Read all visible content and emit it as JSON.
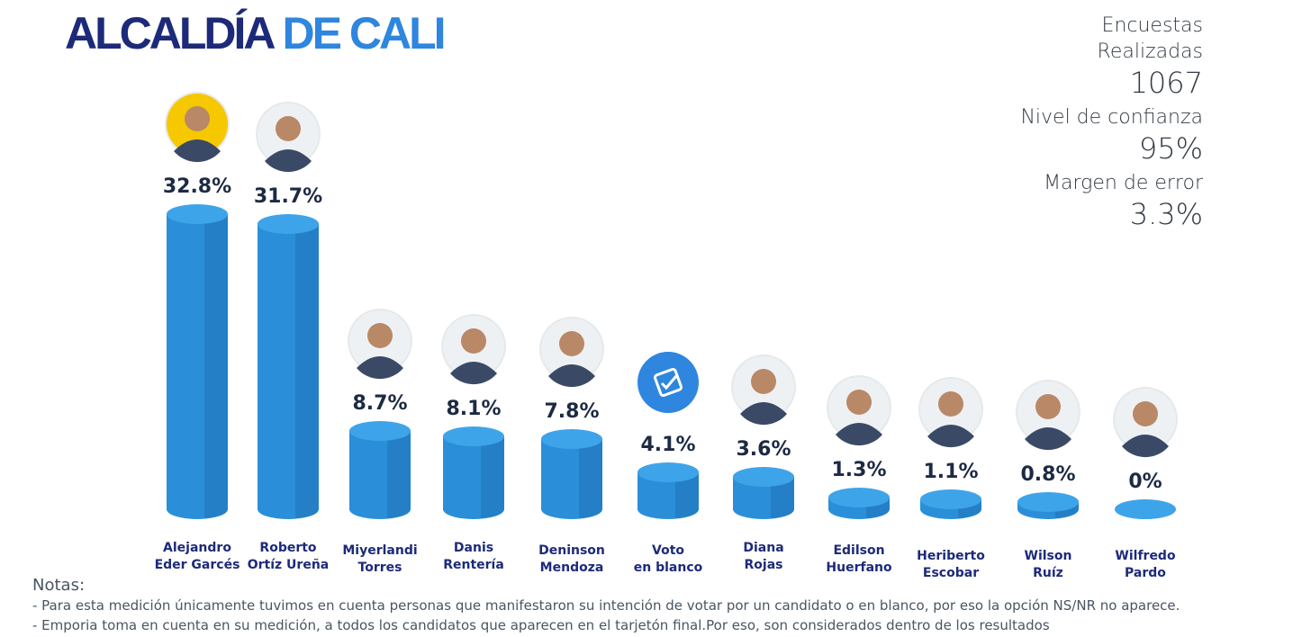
{
  "header": {
    "title_part1": "ALCALDÍA",
    "title_part2": "DE CALI"
  },
  "stats": {
    "surveys_label": "Encuestas Realizadas",
    "surveys_value": "1067",
    "confidence_label": "Nivel de confianza",
    "confidence_value": "95%",
    "margin_label": "Margen de error",
    "margin_value": "3.3%"
  },
  "colors": {
    "bar": "#2a8fd8",
    "bar_dark": "#1f72b8",
    "bar_top": "#3ea4ea",
    "title_dark": "#1d2a7a",
    "title_light": "#2e86de"
  },
  "chart_data": {
    "type": "bar",
    "title": "ALCALDÍA DE CALI",
    "xlabel": "",
    "ylabel": "",
    "ylim": [
      0,
      35
    ],
    "categories": [
      [
        "Alejandro",
        "Eder Garcés"
      ],
      [
        "Roberto",
        "Ortíz Ureña"
      ],
      [
        "Miyerlandi",
        "Torres"
      ],
      [
        "Danis",
        "Rentería"
      ],
      [
        "Deninson",
        "Mendoza"
      ],
      [
        "Voto",
        "en blanco"
      ],
      [
        "Diana",
        "Rojas"
      ],
      [
        "Edilson",
        "Huerfano"
      ],
      [
        "Heriberto",
        "Escobar"
      ],
      [
        "Wilson",
        "Ruíz"
      ],
      [
        "Wilfredo",
        "Pardo"
      ]
    ],
    "values": [
      32.8,
      31.7,
      8.7,
      8.1,
      7.8,
      4.1,
      3.6,
      1.3,
      1.1,
      0.8,
      0
    ],
    "value_labels": [
      "32.8%",
      "31.7%",
      "8.7%",
      "8.1%",
      "7.8%",
      "4.1%",
      "3.6%",
      "1.3%",
      "1.1%",
      "0.8%",
      "0%"
    ],
    "icons": [
      "avatar-icon",
      "avatar-icon",
      "avatar-icon",
      "avatar-icon",
      "avatar-icon",
      "ballot-icon",
      "avatar-icon",
      "avatar-icon",
      "avatar-icon",
      "avatar-icon",
      "avatar-icon"
    ]
  },
  "notes": {
    "title": "Notas:",
    "lines": [
      "-  Para esta medición únicamente tuvimos en cuenta personas que manifestaron su intención de votar por un candidato o en blanco, por eso la opción NS/NR no aparece.",
      "-  Emporia toma en cuenta en su medición, a todos los candidatos  que aparecen en el tarjetón final.Por eso, son considerados dentro de los resultados"
    ]
  }
}
